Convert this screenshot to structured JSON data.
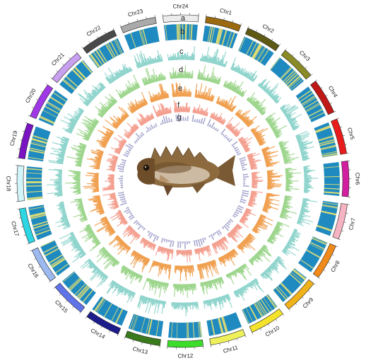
{
  "figure": {
    "chromosomes": [
      {
        "name": "Chr1",
        "color": "#9b6a10",
        "label_mirror": false
      },
      {
        "name": "Chr2",
        "color": "#5e5a14",
        "label_mirror": false
      },
      {
        "name": "Chr3",
        "color": "#8a8a26",
        "label_mirror": false
      },
      {
        "name": "Chr4",
        "color": "#c01717",
        "label_mirror": true
      },
      {
        "name": "Chr5",
        "color": "#e81c1c",
        "label_mirror": true
      },
      {
        "name": "Chr6",
        "color": "#d11fa0",
        "label_mirror": false
      },
      {
        "name": "Chr7",
        "color": "#f6b4c2",
        "label_mirror": false
      },
      {
        "name": "Chr8",
        "color": "#f08a1a",
        "label_mirror": false
      },
      {
        "name": "Chr9",
        "color": "#f0b21a",
        "label_mirror": false
      },
      {
        "name": "Chr10",
        "color": "#f4e32a",
        "label_mirror": false
      },
      {
        "name": "Chr11",
        "color": "#eef05a",
        "label_mirror": false
      },
      {
        "name": "Chr12",
        "color": "#3bdc2a",
        "label_mirror": false
      },
      {
        "name": "Chr13",
        "color": "#3a7a1c",
        "label_mirror": false
      },
      {
        "name": "Chr14",
        "color": "#1c1c8a",
        "label_mirror": false
      },
      {
        "name": "Chr15",
        "color": "#5f74e8",
        "label_mirror": false
      },
      {
        "name": "Chr16",
        "color": "#9dbaf0",
        "label_mirror": false
      },
      {
        "name": "Chr17",
        "color": "#2cd6e2",
        "label_mirror": true
      },
      {
        "name": "Chr18",
        "color": "#d0f4f8",
        "label_mirror": false
      },
      {
        "name": "Chr19",
        "color": "#7a14c2",
        "label_mirror": false
      },
      {
        "name": "Chr20",
        "color": "#a038e8",
        "label_mirror": false
      },
      {
        "name": "Chr21",
        "color": "#c8a0f0",
        "label_mirror": false
      },
      {
        "name": "Chr22",
        "color": "#4a4a4a",
        "label_mirror": false
      },
      {
        "name": "Chr23",
        "color": "#aaaaaa",
        "label_mirror": false
      },
      {
        "name": "Chr24",
        "color": "#ececec",
        "label_mirror": false
      }
    ],
    "tracks": [
      {
        "label": "a",
        "kind": "ideogram",
        "color": "#222222"
      },
      {
        "label": "b",
        "kind": "heatmap",
        "color": "#1f8ac0",
        "accent": "#e8e070"
      },
      {
        "label": "c",
        "kind": "histogram",
        "color": "#8ed4cc"
      },
      {
        "label": "d",
        "kind": "histogram",
        "color": "#9ed68e"
      },
      {
        "label": "e",
        "kind": "histogram",
        "color": "#f0a050"
      },
      {
        "label": "f",
        "kind": "histogram",
        "color": "#f4a090"
      },
      {
        "label": "g",
        "kind": "histogram",
        "color": "#a8a8d0"
      }
    ],
    "center_image": "fish-photo"
  }
}
